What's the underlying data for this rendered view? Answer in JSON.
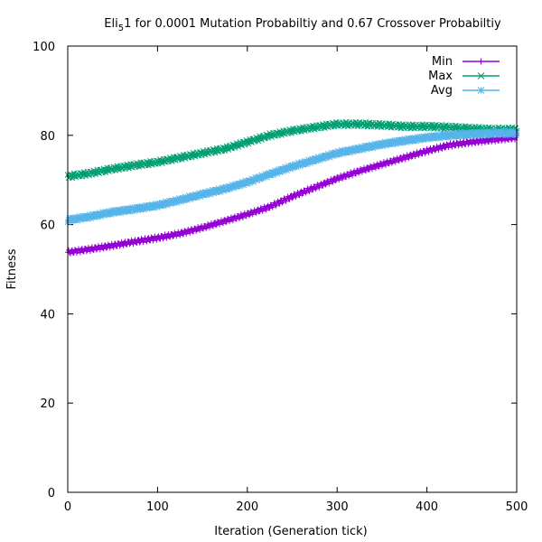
{
  "chart_data": {
    "type": "line",
    "title_main": "Eli",
    "title_sub": "5",
    "title_rest": "1 for 0.0001 Mutation Probabiltiy and 0.67 Crossover Probabiltiy",
    "xlabel": "Iteration (Generation tick)",
    "ylabel": "Fitness",
    "xlim": [
      0,
      500
    ],
    "ylim": [
      0,
      100
    ],
    "xticks": [
      0,
      100,
      200,
      300,
      400,
      500
    ],
    "yticks": [
      0,
      20,
      40,
      60,
      80,
      100
    ],
    "grid": false,
    "legend_position": "top-right",
    "series": [
      {
        "name": "Min",
        "color": "#9400d3",
        "marker": "plus",
        "x": [
          0,
          25,
          50,
          75,
          100,
          125,
          150,
          175,
          200,
          225,
          250,
          275,
          300,
          325,
          350,
          375,
          400,
          425,
          450,
          475,
          500
        ],
        "y": [
          53.8,
          54.5,
          55.3,
          56.2,
          57.0,
          58.0,
          59.3,
          60.8,
          62.3,
          64.0,
          66.3,
          68.3,
          70.3,
          72.0,
          73.5,
          75.0,
          76.5,
          77.8,
          78.5,
          79.0,
          79.5
        ]
      },
      {
        "name": "Max",
        "color": "#009e73",
        "marker": "cross",
        "x": [
          0,
          25,
          50,
          75,
          100,
          125,
          150,
          175,
          200,
          225,
          250,
          275,
          300,
          325,
          350,
          375,
          400,
          425,
          450,
          475,
          500
        ],
        "y": [
          70.8,
          71.5,
          72.5,
          73.3,
          74.0,
          75.0,
          76.0,
          77.0,
          78.5,
          80.0,
          81.0,
          81.8,
          82.5,
          82.5,
          82.3,
          82.0,
          82.0,
          81.8,
          81.5,
          81.3,
          81.3
        ]
      },
      {
        "name": "Avg",
        "color": "#56b4e9",
        "marker": "star",
        "x": [
          0,
          25,
          50,
          75,
          100,
          125,
          150,
          175,
          200,
          225,
          250,
          275,
          300,
          325,
          350,
          375,
          400,
          425,
          450,
          475,
          500
        ],
        "y": [
          61.0,
          61.8,
          62.8,
          63.5,
          64.3,
          65.5,
          66.8,
          68.0,
          69.5,
          71.3,
          73.0,
          74.5,
          76.0,
          77.0,
          78.0,
          78.8,
          79.5,
          80.0,
          80.3,
          80.5,
          80.5
        ]
      }
    ]
  }
}
